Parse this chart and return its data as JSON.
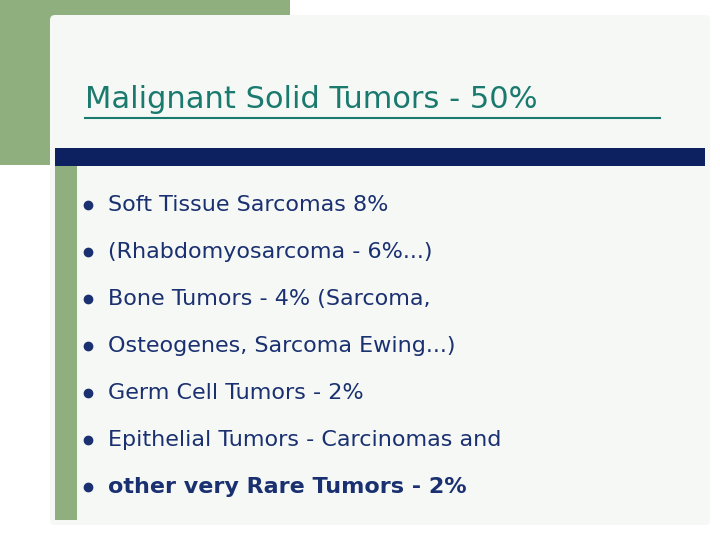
{
  "title": "Malignant Solid Tumors - 50%",
  "title_color": "#1a7a6e",
  "title_fontsize": 22,
  "background_color": "#ffffff",
  "outer_bg_color": "#c8d8c0",
  "left_green_color": "#8faf7e",
  "slide_bg_color": "#f5f8f5",
  "divider_color": "#0d2060",
  "bullet_color": "#1a3070",
  "bullet_items": [
    {
      "text": "Soft Tissue Sarcomas 8%",
      "bold": false
    },
    {
      "text": "(Rhabdomyosarcoma - 6%...)",
      "bold": false
    },
    {
      "text": "Bone Tumors - 4% (Sarcoma,",
      "bold": false
    },
    {
      "text": "Osteogenes, Sarcoma Ewing...)",
      "bold": false
    },
    {
      "text": "Germ Cell Tumors - 2%",
      "bold": false
    },
    {
      "text": "Epithelial Tumors - Carcinomas and",
      "bold": false
    },
    {
      "text": "other very Rare Tumors - 2%",
      "bold": true
    }
  ],
  "text_color": "#1a3070",
  "text_fontsize": 16,
  "figsize": [
    7.2,
    5.4
  ],
  "dpi": 100
}
